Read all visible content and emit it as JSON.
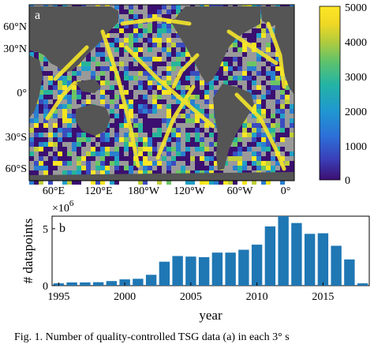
{
  "map_panel": {
    "label": "a",
    "lat_ticks": [
      "60°N",
      "30°N",
      "0°",
      "30°S",
      "60°S"
    ],
    "lon_ticks": [
      "60°E",
      "120°E",
      "180°W",
      "120°W",
      "60°W",
      "0°"
    ],
    "colorbar_ticks": [
      "5000",
      "4000",
      "3000",
      "2000",
      "1000",
      "0"
    ],
    "colormap": [
      "#3b0f70",
      "#3a4cc0",
      "#2a7fd0",
      "#21a0c8",
      "#27b59a",
      "#6cc564",
      "#bfcf3a",
      "#f2e41e",
      "#fde725"
    ],
    "land_color": "#555555",
    "no_data_color": "#9a9a9a"
  },
  "chart_data": {
    "type": "bar",
    "label": "b",
    "categories": [
      "1995",
      "1996",
      "1997",
      "1998",
      "1999",
      "2000",
      "2001",
      "2002",
      "2003",
      "2004",
      "2005",
      "2006",
      "2007",
      "2008",
      "2009",
      "2010",
      "2011",
      "2012",
      "2013",
      "2014",
      "2015",
      "2016",
      "2017",
      "2018"
    ],
    "values": [
      0.2,
      0.28,
      0.28,
      0.3,
      0.4,
      0.55,
      0.6,
      0.95,
      2.1,
      2.6,
      2.55,
      2.5,
      2.9,
      2.9,
      3.15,
      3.6,
      5.2,
      6.1,
      5.5,
      4.55,
      4.6,
      3.5,
      2.3,
      0.2
    ],
    "xticks": [
      "1995",
      "2000",
      "2005",
      "2010",
      "2015"
    ],
    "yticks": [
      "0",
      "5"
    ],
    "multiplier": "×10",
    "multiplier_exp": "6",
    "xlabel": "year",
    "ylabel": "# datapoints",
    "ylim": [
      0,
      6.1
    ],
    "bar_color": "#1f77b4"
  },
  "caption": "Fig. 1. Number of quality-controlled TSG data (a) in each 3° s"
}
